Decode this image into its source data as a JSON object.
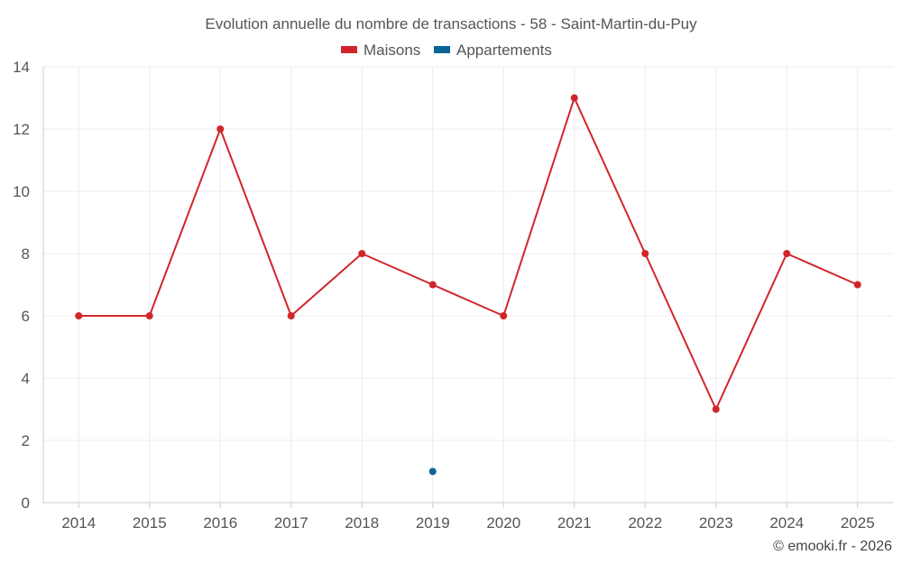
{
  "chart_data": {
    "type": "line",
    "title": "Evolution annuelle du nombre de transactions - 58 - Saint-Martin-du-Puy",
    "categories": [
      "2014",
      "2015",
      "2016",
      "2017",
      "2018",
      "2019",
      "2020",
      "2021",
      "2022",
      "2023",
      "2024",
      "2025"
    ],
    "series": [
      {
        "name": "Maisons",
        "color": "#d0262a",
        "values": [
          6,
          6,
          12,
          6,
          8,
          7,
          6,
          13,
          8,
          3,
          8,
          7
        ]
      },
      {
        "name": "Appartements",
        "color": "#0b6496",
        "values": [
          null,
          null,
          null,
          null,
          null,
          1,
          null,
          null,
          null,
          null,
          null,
          null
        ]
      }
    ],
    "ylim": [
      0,
      14
    ],
    "yticks": [
      0,
      2,
      4,
      6,
      8,
      10,
      12,
      14
    ],
    "xlabel": "",
    "ylabel": "",
    "grid": true,
    "legend": "top-center"
  },
  "credit": "© emooki.fr - 2026"
}
